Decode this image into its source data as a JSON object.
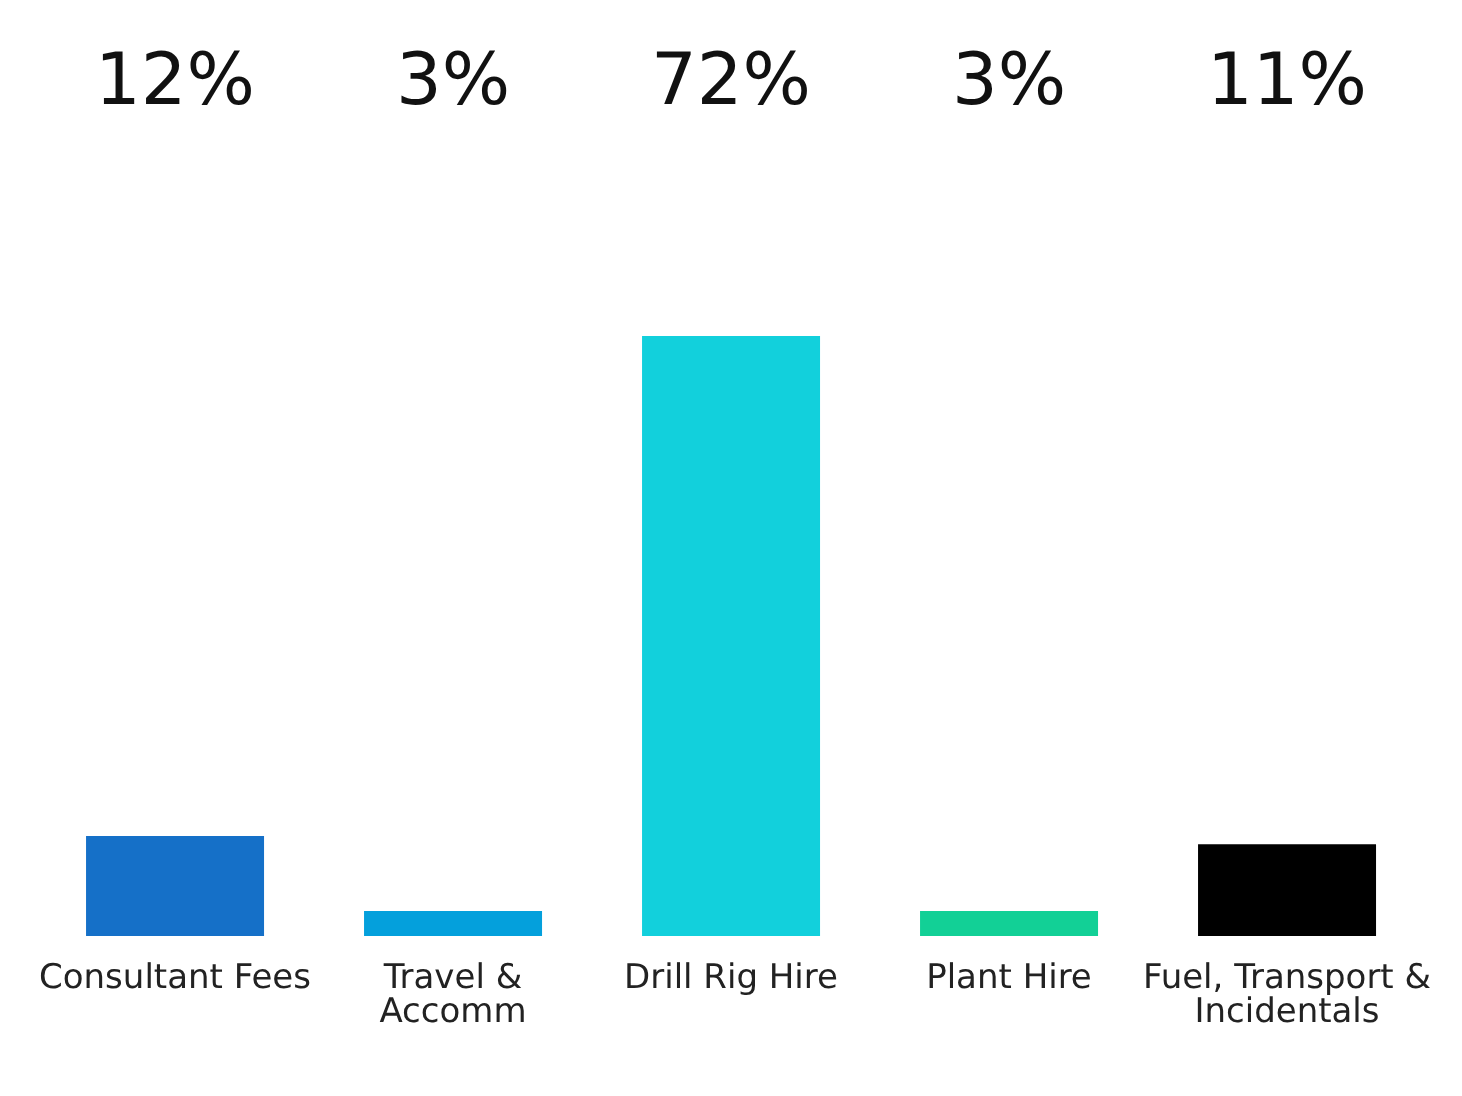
{
  "chart_data": {
    "type": "bar",
    "categories": [
      "Consultant Fees",
      "Travel & Accomm",
      "Drill Rig Hire",
      "Plant  Hire",
      "Fuel, Transport & Incidentals"
    ],
    "values": [
      12,
      3,
      72,
      3,
      11
    ],
    "value_labels": [
      "12%",
      "3%",
      "72%",
      "3%",
      "11%"
    ],
    "colors": [
      "#1570c8",
      "#04a0dc",
      "#12d0dc",
      "#12d096",
      "#000000"
    ]
  }
}
